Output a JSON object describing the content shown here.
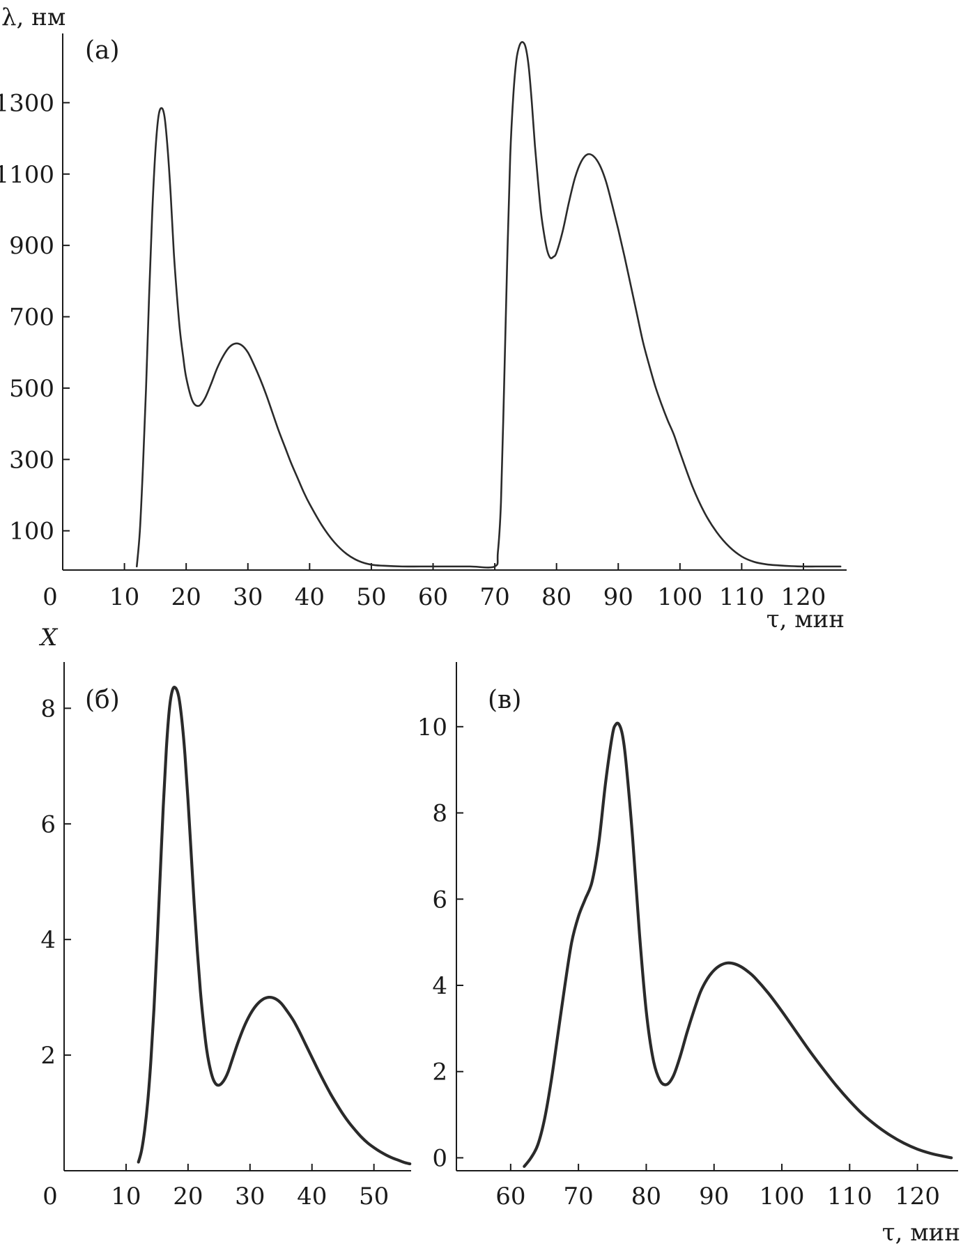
{
  "chart_data": [
    {
      "type": "line",
      "panel_label": "(a)",
      "xlabel": "τ, мин",
      "ylabel": "λ, нм",
      "xlim": [
        0,
        127
      ],
      "ylim": [
        -10,
        1500
      ],
      "x_ticks": [
        0,
        10,
        20,
        30,
        40,
        50,
        60,
        70,
        80,
        90,
        100,
        110,
        120
      ],
      "y_ticks": [
        100,
        300,
        500,
        700,
        900,
        1100,
        1300
      ],
      "grid": false,
      "series": [
        {
          "color": "#2a2a2a",
          "x": [
            12,
            12.5,
            13,
            13.5,
            14,
            14.5,
            15,
            15.5,
            16,
            16.5,
            17,
            17.5,
            18,
            18.5,
            19,
            19.5,
            20,
            21,
            22,
            23,
            24,
            25,
            26,
            27,
            28,
            29,
            30,
            31,
            32,
            33,
            34,
            35,
            36,
            37,
            38,
            39,
            40,
            42,
            44,
            46,
            48,
            50,
            52,
            55,
            58,
            62,
            66,
            70,
            70.5,
            71,
            71.5,
            72,
            72.5,
            73,
            73.5,
            74,
            74.5,
            75,
            75.5,
            76,
            76.5,
            77,
            77.5,
            78,
            78.5,
            79,
            79.5,
            80,
            81,
            82,
            83,
            84,
            85,
            86,
            87,
            88,
            89,
            90,
            91,
            92,
            93,
            94,
            95,
            96,
            97,
            98,
            99,
            100,
            102,
            104,
            106,
            108,
            110,
            112,
            114,
            116,
            118,
            120,
            122,
            124,
            126
          ],
          "y": [
            0,
            100,
            280,
            500,
            760,
            990,
            1160,
            1260,
            1285,
            1260,
            1170,
            1040,
            880,
            760,
            660,
            590,
            530,
            465,
            450,
            470,
            510,
            555,
            590,
            615,
            625,
            620,
            600,
            565,
            525,
            480,
            430,
            380,
            335,
            290,
            250,
            210,
            175,
            115,
            68,
            35,
            15,
            5,
            2,
            0,
            0,
            0,
            0,
            0,
            40,
            180,
            500,
            850,
            1150,
            1320,
            1420,
            1460,
            1470,
            1455,
            1400,
            1300,
            1180,
            1080,
            990,
            930,
            885,
            865,
            868,
            880,
            940,
            1020,
            1090,
            1135,
            1155,
            1150,
            1125,
            1080,
            1015,
            945,
            870,
            790,
            710,
            630,
            565,
            505,
            455,
            410,
            370,
            320,
            225,
            150,
            95,
            55,
            28,
            13,
            6,
            3,
            1,
            0,
            0,
            0,
            0
          ]
        }
      ]
    },
    {
      "type": "line",
      "panel_label": "(б)",
      "xlabel": "",
      "ylabel": "X",
      "xlim": [
        0,
        56
      ],
      "ylim": [
        0,
        8.8
      ],
      "x_ticks": [
        0,
        10,
        20,
        30,
        40,
        50
      ],
      "y_ticks": [
        2,
        4,
        6,
        8
      ],
      "grid": false,
      "series": [
        {
          "color": "#2a2a2a",
          "x": [
            12,
            12.5,
            13,
            13.5,
            14,
            14.5,
            15,
            15.5,
            16,
            16.5,
            17,
            17.5,
            18,
            18.5,
            19,
            19.5,
            20,
            20.5,
            21,
            21.5,
            22,
            22.5,
            23,
            23.5,
            24,
            24.5,
            25,
            25.5,
            26,
            26.5,
            27,
            28,
            29,
            30,
            31,
            32,
            33,
            34,
            35,
            36,
            37,
            38,
            39,
            40,
            41,
            42,
            43,
            44,
            45,
            46,
            47,
            48,
            49,
            50,
            51,
            52,
            53,
            54,
            55,
            55.8
          ],
          "y": [
            0.15,
            0.35,
            0.7,
            1.2,
            1.9,
            2.8,
            3.9,
            5.1,
            6.3,
            7.3,
            8.0,
            8.32,
            8.35,
            8.2,
            7.8,
            7.2,
            6.4,
            5.5,
            4.6,
            3.8,
            3.1,
            2.55,
            2.1,
            1.8,
            1.6,
            1.5,
            1.48,
            1.52,
            1.6,
            1.72,
            1.88,
            2.2,
            2.48,
            2.7,
            2.86,
            2.96,
            3.0,
            2.98,
            2.9,
            2.76,
            2.6,
            2.4,
            2.18,
            1.96,
            1.74,
            1.53,
            1.33,
            1.15,
            0.98,
            0.83,
            0.7,
            0.58,
            0.48,
            0.4,
            0.33,
            0.27,
            0.22,
            0.18,
            0.14,
            0.12
          ]
        }
      ]
    },
    {
      "type": "line",
      "panel_label": "(в)",
      "xlabel": "τ, мин",
      "ylabel": "",
      "xlim": [
        52,
        126
      ],
      "ylim": [
        -0.3,
        11.5
      ],
      "x_ticks": [
        60,
        70,
        80,
        90,
        100,
        110,
        120
      ],
      "y_ticks": [
        0,
        2,
        4,
        6,
        8,
        10
      ],
      "grid": false,
      "series": [
        {
          "color": "#2a2a2a",
          "x": [
            62,
            63,
            64,
            65,
            66,
            67,
            68,
            69,
            70,
            71,
            72,
            73,
            74,
            75,
            75.5,
            76,
            76.5,
            77,
            78,
            79,
            80,
            81,
            82,
            83,
            84,
            85,
            86,
            87,
            88,
            89,
            90,
            91,
            92,
            93,
            94,
            95,
            96,
            98,
            100,
            102,
            104,
            106,
            108,
            110,
            112,
            114,
            116,
            118,
            120,
            122,
            124,
            125
          ],
          "y": [
            -0.2,
            0.0,
            0.3,
            0.9,
            1.8,
            2.9,
            4.0,
            5.0,
            5.6,
            6.0,
            6.4,
            7.3,
            8.7,
            9.8,
            10.05,
            10.05,
            9.8,
            9.2,
            7.4,
            5.2,
            3.4,
            2.3,
            1.8,
            1.7,
            1.9,
            2.35,
            2.9,
            3.4,
            3.85,
            4.15,
            4.35,
            4.47,
            4.52,
            4.5,
            4.43,
            4.32,
            4.18,
            3.82,
            3.4,
            2.95,
            2.5,
            2.08,
            1.68,
            1.32,
            1.0,
            0.74,
            0.52,
            0.34,
            0.2,
            0.1,
            0.03,
            0.0
          ]
        }
      ]
    }
  ]
}
